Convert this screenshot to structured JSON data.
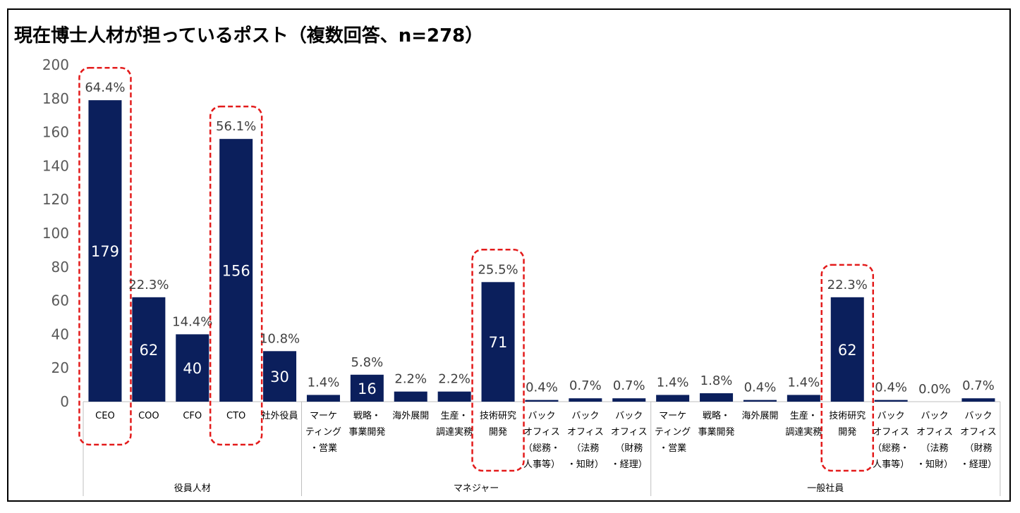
{
  "title": "現在博士人材が担っているポスト（複数回答、n=278）",
  "colors": {
    "bar": "#0b1f5c",
    "highlight": "#e31b1b",
    "axis_text": "#595959"
  },
  "chart_data": {
    "type": "bar",
    "title": "現在博士人材が担っているポスト（複数回答、n=278）",
    "ylim": [
      0,
      200
    ],
    "yticks": [
      0,
      20,
      40,
      60,
      80,
      100,
      120,
      140,
      160,
      180,
      200
    ],
    "groups": [
      {
        "name": "役員人材",
        "categories": [
          {
            "label": [
              "CEO"
            ],
            "value": 179,
            "pct": "64.4%",
            "value_label": "179",
            "highlight": true
          },
          {
            "label": [
              "COO"
            ],
            "value": 62,
            "pct": "22.3%",
            "value_label": "62",
            "highlight": false
          },
          {
            "label": [
              "CFO"
            ],
            "value": 40,
            "pct": "14.4%",
            "value_label": "40",
            "highlight": false
          },
          {
            "label": [
              "CTO"
            ],
            "value": 156,
            "pct": "56.1%",
            "value_label": "156",
            "highlight": true
          },
          {
            "label": [
              "社外役員"
            ],
            "value": 30,
            "pct": "10.8%",
            "value_label": "30",
            "highlight": false
          }
        ]
      },
      {
        "name": "マネジャー",
        "categories": [
          {
            "label": [
              "マーケ",
              "ティング",
              "・営業"
            ],
            "value": 4,
            "pct": "1.4%",
            "value_label": "",
            "highlight": false
          },
          {
            "label": [
              "戦略・",
              "事業開発"
            ],
            "value": 16,
            "pct": "5.8%",
            "value_label": "16",
            "highlight": false
          },
          {
            "label": [
              "海外展開"
            ],
            "value": 6,
            "pct": "2.2%",
            "value_label": "",
            "highlight": false
          },
          {
            "label": [
              "生産・",
              "調達実務"
            ],
            "value": 6,
            "pct": "2.2%",
            "value_label": "",
            "highlight": false
          },
          {
            "label": [
              "技術研究",
              "開発"
            ],
            "value": 71,
            "pct": "25.5%",
            "value_label": "71",
            "highlight": true
          },
          {
            "label": [
              "バック",
              "オフィス",
              "（総務・",
              "人事等）"
            ],
            "value": 1,
            "pct": "0.4%",
            "value_label": "",
            "highlight": false
          },
          {
            "label": [
              "バック",
              "オフィス",
              "（法務",
              "・知財）"
            ],
            "value": 2,
            "pct": "0.7%",
            "value_label": "",
            "highlight": false
          },
          {
            "label": [
              "バック",
              "オフィス",
              "（財務",
              "・経理）"
            ],
            "value": 2,
            "pct": "0.7%",
            "value_label": "",
            "highlight": false
          }
        ]
      },
      {
        "name": "一般社員",
        "categories": [
          {
            "label": [
              "マーケ",
              "ティング",
              "・営業"
            ],
            "value": 4,
            "pct": "1.4%",
            "value_label": "",
            "highlight": false
          },
          {
            "label": [
              "戦略・",
              "事業開発"
            ],
            "value": 5,
            "pct": "1.8%",
            "value_label": "",
            "highlight": false
          },
          {
            "label": [
              "海外展開"
            ],
            "value": 1,
            "pct": "0.4%",
            "value_label": "",
            "highlight": false
          },
          {
            "label": [
              "生産・",
              "調達実務"
            ],
            "value": 4,
            "pct": "1.4%",
            "value_label": "",
            "highlight": false
          },
          {
            "label": [
              "技術研究",
              "開発"
            ],
            "value": 62,
            "pct": "22.3%",
            "value_label": "62",
            "highlight": true
          },
          {
            "label": [
              "バック",
              "オフィス",
              "（総務・",
              "人事等）"
            ],
            "value": 1,
            "pct": "0.4%",
            "value_label": "",
            "highlight": false
          },
          {
            "label": [
              "バック",
              "オフィス",
              "（法務",
              "・知財）"
            ],
            "value": 0,
            "pct": "0.0%",
            "value_label": "",
            "highlight": false
          },
          {
            "label": [
              "バック",
              "オフィス",
              "（財務",
              "・経理）"
            ],
            "value": 2,
            "pct": "0.7%",
            "value_label": "",
            "highlight": false
          }
        ]
      }
    ]
  }
}
